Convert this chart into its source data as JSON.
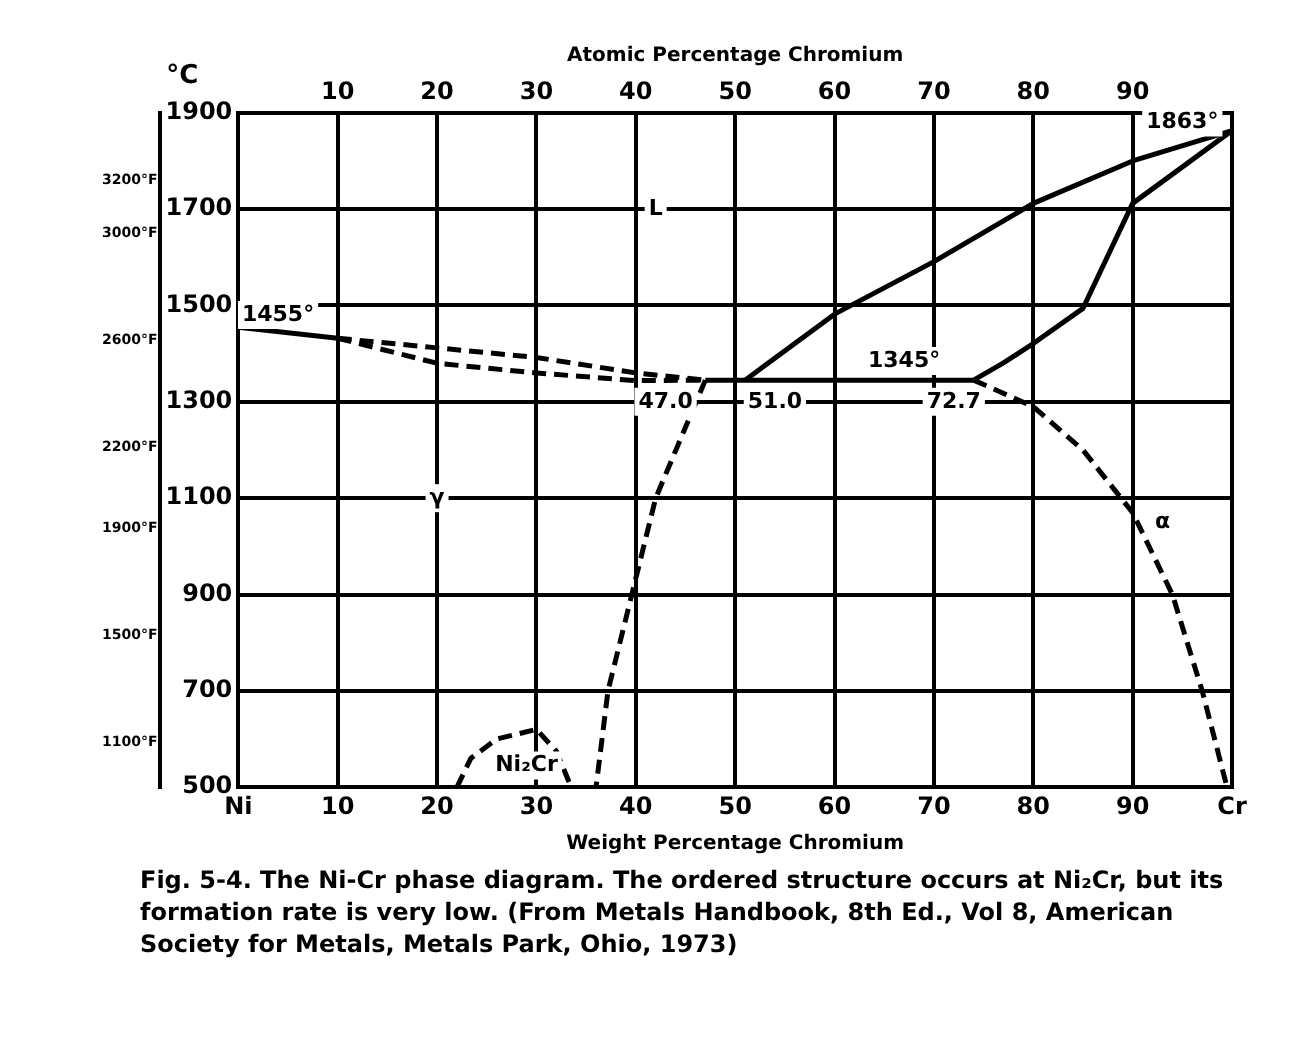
{
  "chart_data": {
    "type": "line",
    "xlabel": "Weight Percentage Chromium",
    "x2label": "Atomic Percentage Chromium",
    "ylabel": "°C",
    "xlim": [
      0,
      100
    ],
    "xticks": [
      {
        "value": 0,
        "label": "Ni"
      },
      10,
      20,
      30,
      40,
      50,
      60,
      70,
      80,
      90,
      {
        "value": 100,
        "label": "Cr"
      }
    ],
    "x2lim": [
      0,
      100
    ],
    "x2ticks": [
      10,
      20,
      30,
      40,
      50,
      60,
      70,
      80,
      90
    ],
    "ylim": [
      500,
      1900
    ],
    "yticks": [
      500,
      700,
      900,
      1100,
      1300,
      1500,
      1700,
      1900
    ],
    "y2lim": [
      932,
      3452
    ],
    "y2ticks": [
      {
        "value": 1100,
        "label": "1100°F"
      },
      {
        "value": 1500,
        "label": "1500°F"
      },
      {
        "value": 1900,
        "label": "1900°F"
      },
      {
        "value": 2200,
        "label": "2200°F"
      },
      {
        "value": 2600,
        "label": "2600°F"
      },
      {
        "value": 3000,
        "label": "3000°F"
      },
      {
        "value": 3200,
        "label": "3200°F"
      }
    ],
    "grid": true,
    "legend": false,
    "marker": "none",
    "series": [
      {
        "color": "#000000",
        "line_style": "solid",
        "x": [
          0,
          10
        ],
        "values": [
          1455,
          1432
        ]
      },
      {
        "color": "#000000",
        "line_style": "dashed",
        "x": [
          10,
          20,
          30,
          40,
          47
        ],
        "values": [
          1432,
          1412,
          1392,
          1360,
          1345
        ]
      },
      {
        "color": "#000000",
        "line_style": "dashed",
        "x": [
          10,
          20,
          30,
          40,
          47
        ],
        "values": [
          1432,
          1380,
          1360,
          1344,
          1345
        ]
      },
      {
        "color": "#000000",
        "line_style": "solid",
        "x": [
          47,
          74
        ],
        "values": [
          1345,
          1345
        ]
      },
      {
        "color": "#000000",
        "line_style": "solid",
        "x": [
          51,
          60,
          70,
          80,
          90,
          100
        ],
        "values": [
          1345,
          1482,
          1591,
          1712,
          1800,
          1863
        ]
      },
      {
        "color": "#000000",
        "line_style": "solid",
        "x": [
          74,
          77,
          80,
          85,
          90,
          100
        ],
        "values": [
          1345,
          1381,
          1421,
          1494,
          1712,
          1863
        ]
      },
      {
        "color": "#000000",
        "line_style": "dashed",
        "x": [
          74,
          80,
          85,
          90,
          94,
          97,
          99.5
        ],
        "values": [
          1345,
          1290,
          1200,
          1070,
          900,
          700,
          500
        ]
      },
      {
        "color": "#000000",
        "line_style": "dashed",
        "x": [
          47,
          44.2,
          42,
          39.6,
          37.2,
          36
        ],
        "values": [
          1345,
          1208,
          1100,
          900,
          700,
          500
        ]
      },
      {
        "color": "#000000",
        "line_style": "dashed",
        "x": [
          22,
          23.4,
          26,
          30,
          32,
          33.5
        ],
        "values": [
          500,
          560,
          600,
          620,
          575,
          500
        ]
      }
    ],
    "annotations": [
      {
        "text": "1455°",
        "x": 4,
        "y": 1480
      },
      {
        "text": "1863°",
        "x": 95,
        "y": 1880
      },
      {
        "text": "1345°",
        "x": 67,
        "y": 1385
      },
      {
        "text": "47.0",
        "x": 43,
        "y": 1300
      },
      {
        "text": "51.0",
        "x": 54,
        "y": 1300
      },
      {
        "text": "72.7",
        "x": 72,
        "y": 1300
      },
      {
        "text": "L",
        "x": 42,
        "y": 1700
      },
      {
        "text": "γ",
        "x": 20,
        "y": 1100
      },
      {
        "text": "α",
        "x": 93,
        "y": 1050
      },
      {
        "text": "Ni₂Cr",
        "x": 29,
        "y": 545
      },
      "Fig. 5-4. The Ni-Cr phase diagram. The ordered structure occurs at Ni₂Cr, but its formation rate is very low. (From Metals Handbook, 8th Ed., Vol 8, American Society for Metals, Metals Park, Ohio, 1973)"
    ]
  }
}
